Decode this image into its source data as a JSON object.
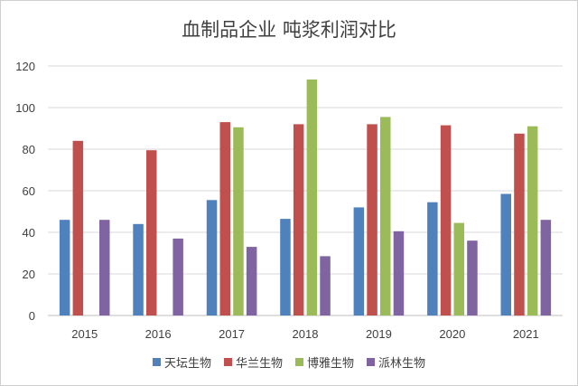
{
  "chart_data": {
    "type": "bar",
    "title": "血制品企业 吨浆利润对比",
    "xlabel": "",
    "ylabel": "",
    "categories": [
      "2015",
      "2016",
      "2017",
      "2018",
      "2019",
      "2020",
      "2021"
    ],
    "ylim": [
      0,
      120
    ],
    "yticks": [
      0,
      20,
      40,
      60,
      80,
      100,
      120
    ],
    "grid": true,
    "legend_position": "bottom",
    "series": [
      {
        "name": "天坛生物",
        "color": "#4f81bd",
        "values": [
          46,
          44,
          55.5,
          46.5,
          52,
          54.5,
          58.5
        ]
      },
      {
        "name": "华兰生物",
        "color": "#c0504d",
        "values": [
          84,
          79.5,
          93,
          92,
          92,
          91.5,
          87.5
        ]
      },
      {
        "name": "博雅生物",
        "color": "#9bbb59",
        "values": [
          null,
          null,
          90.5,
          113.5,
          95.5,
          44.5,
          91
        ]
      },
      {
        "name": "派林生物",
        "color": "#8064a2",
        "values": [
          46,
          37,
          33,
          28.5,
          40.5,
          36,
          46
        ]
      }
    ]
  }
}
